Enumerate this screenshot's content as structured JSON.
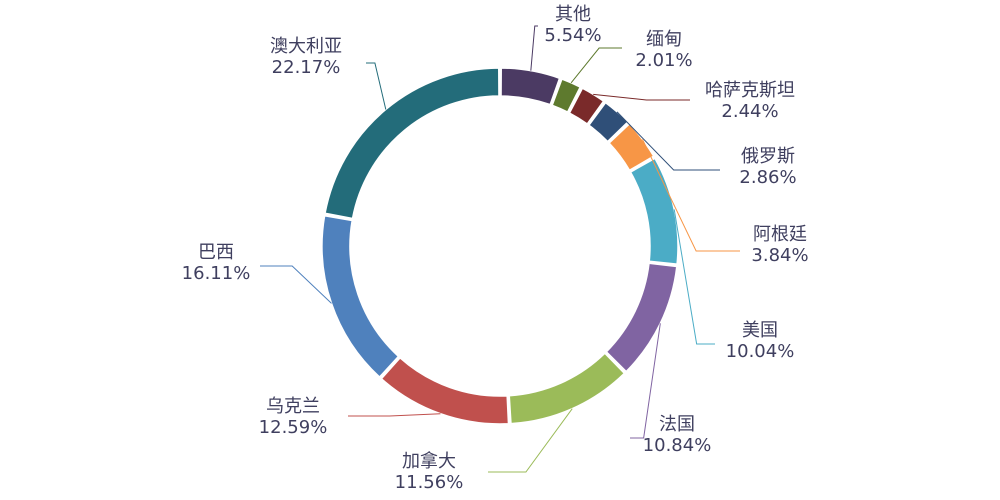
{
  "chart_data": {
    "type": "pie",
    "variant": "donut",
    "title": "",
    "categories": [
      "其他",
      "缅甸",
      "哈萨克斯坦",
      "俄罗斯",
      "阿根廷",
      "美国",
      "法国",
      "加拿大",
      "乌克兰",
      "巴西",
      "澳大利亚"
    ],
    "values": [
      5.54,
      2.01,
      2.44,
      2.86,
      3.84,
      10.04,
      10.84,
      11.56,
      12.59,
      16.11,
      22.17
    ],
    "value_labels": [
      "5.54%",
      "2.01%",
      "2.44%",
      "2.86%",
      "3.84%",
      "10.04%",
      "10.84%",
      "11.56%",
      "12.59%",
      "16.11%",
      "22.17%"
    ],
    "colors": [
      "#4b3a63",
      "#5e7a2e",
      "#7a2a2a",
      "#2f4f78",
      "#f79646",
      "#4bacc6",
      "#8064a2",
      "#9bbb59",
      "#c0504d",
      "#4f81bd",
      "#236c7a"
    ],
    "start_angle_deg": 0,
    "direction": "clockwise",
    "legend": "none",
    "data_labels": "outside-with-leader-lines"
  }
}
